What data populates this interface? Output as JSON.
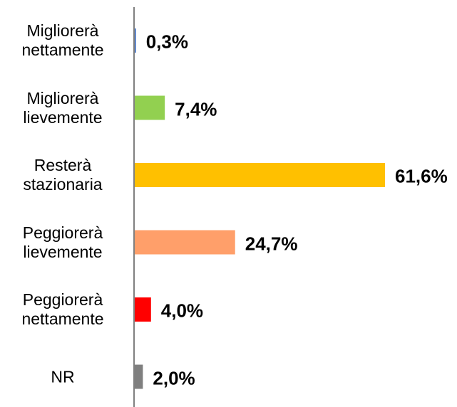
{
  "chart_data": {
    "type": "bar",
    "orientation": "horizontal",
    "categories": [
      "Migliorerà nettamente",
      "Migliorerà lievemente",
      "Resterà stazionaria",
      "Peggiorerà lievemente",
      "Peggiorerà nettamente",
      "NR"
    ],
    "values": [
      0.3,
      7.4,
      61.6,
      24.7,
      4.0,
      2.0
    ],
    "value_labels": [
      "0,3%",
      "7,4%",
      "61,6%",
      "24,7%",
      "4,0%",
      "2,0%"
    ],
    "colors": [
      "#4472c4",
      "#92d050",
      "#ffc000",
      "#ff9f6a",
      "#ff0000",
      "#7f7f7f"
    ]
  }
}
